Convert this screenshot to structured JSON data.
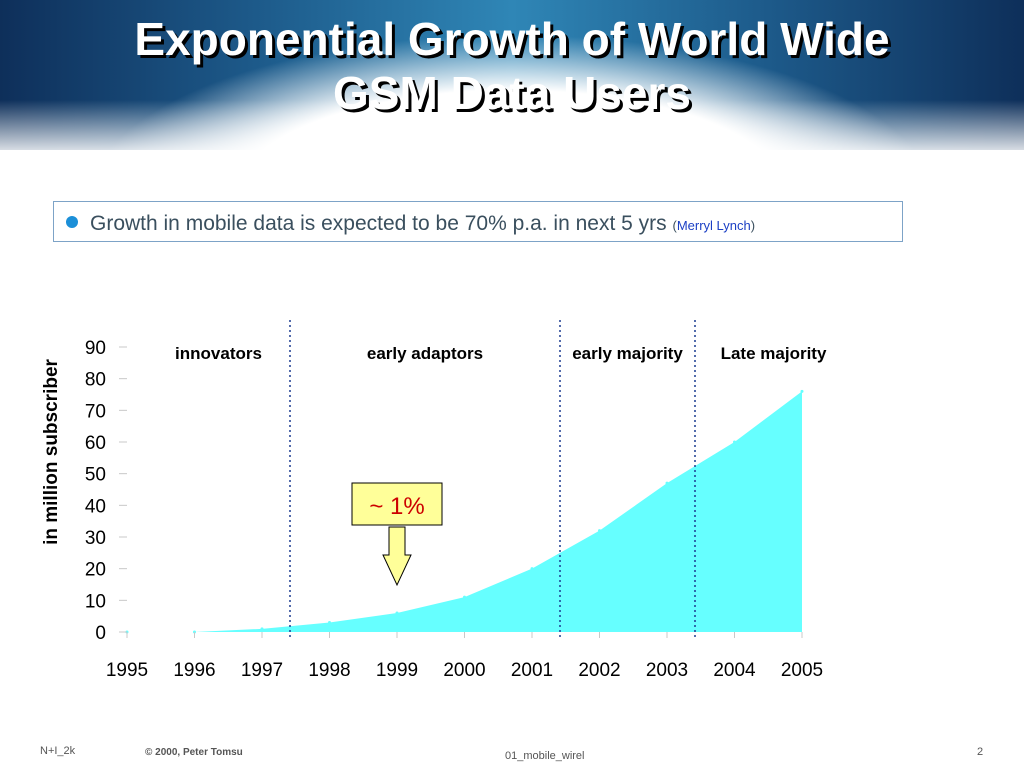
{
  "slide": {
    "title_line1": "Exponential Growth of World Wide",
    "title_line2": "GSM Data Users",
    "bullet_text": "Growth in mobile data is expected to be 70% p.a. in next 5 yrs",
    "bullet_open": "(",
    "bullet_source": "Merryl Lynch",
    "bullet_close": ")",
    "footer_left": "N+I_2k",
    "footer_copyright": "© 2000, Peter Tomsu",
    "footer_center": "01_mobile_wirel",
    "page_number": "2"
  },
  "colors": {
    "area_fill": "#66ffff",
    "divider": "#1a3a8f",
    "callout_fill": "#ffff99",
    "callout_text": "#cc0000",
    "axis_text": "#000000"
  },
  "chart_data": {
    "type": "area",
    "ylabel": "in million subscriber",
    "xlabel": "",
    "categories": [
      "1995",
      "1996",
      "1997",
      "1998",
      "1999",
      "2000",
      "2001",
      "2002",
      "2003",
      "2004",
      "2005"
    ],
    "values": [
      0,
      0,
      1,
      3,
      6,
      11,
      20,
      32,
      47,
      60,
      76
    ],
    "ylim": [
      0,
      90
    ],
    "yticks": [
      0,
      10,
      20,
      30,
      40,
      50,
      60,
      70,
      80,
      90
    ],
    "grid": false,
    "legend": "none",
    "segments": [
      {
        "label": "innovators",
        "from": "1995",
        "to": "1997"
      },
      {
        "label": "early adaptors",
        "from": "1997",
        "to": "2001"
      },
      {
        "label": "early majority",
        "from": "2001",
        "to": "2003"
      },
      {
        "label": "Late majority",
        "from": "2003",
        "to": "2005"
      }
    ],
    "dividers_at": [
      "1997",
      "2001",
      "2003"
    ],
    "callout": {
      "text": "~ 1%",
      "points_to": "1999"
    }
  }
}
